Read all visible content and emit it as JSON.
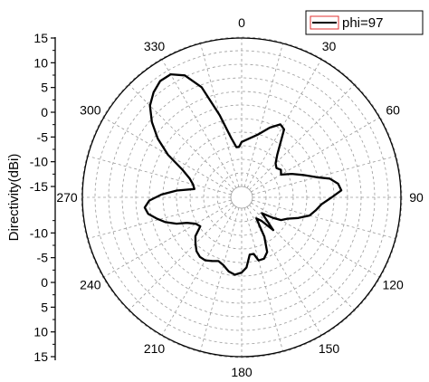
{
  "chart_data": {
    "type": "polar-line",
    "title": "",
    "ylabel": "Directivity(dBi)",
    "radial_range": [
      -15,
      15
    ],
    "radial_ticks_upper": [
      "15",
      "10",
      "5",
      "0",
      "-5",
      "-10",
      "-15"
    ],
    "radial_ticks_lower": [
      "-15",
      "-10",
      "-5",
      "0",
      "5",
      "10",
      "15"
    ],
    "angle_labels": [
      "0",
      "30",
      "60",
      "90",
      "120",
      "150",
      "180",
      "210",
      "240",
      "270",
      "300",
      "330"
    ],
    "angle_direction": "clockwise",
    "zero_angle": "top",
    "grid": true,
    "legend_position": "top-right",
    "series": [
      {
        "name": "phi=97",
        "color": "#000000",
        "theta": [
          0,
          15,
          22,
          28,
          32,
          36,
          40,
          45,
          50,
          55,
          60,
          65,
          70,
          75,
          78,
          82,
          86,
          90,
          95,
          100,
          105,
          110,
          115,
          120,
          123,
          128,
          132,
          136,
          140,
          145,
          150,
          155,
          160,
          165,
          168,
          172,
          176,
          180,
          185,
          190,
          195,
          200,
          205,
          210,
          215,
          220,
          225,
          230,
          235,
          240,
          245,
          248,
          252,
          256,
          260,
          264,
          268,
          272,
          276,
          280,
          285,
          290,
          295,
          300,
          305,
          310,
          315,
          320,
          325,
          330,
          335,
          340,
          345,
          350,
          354,
          357,
          360
        ],
        "values": [
          -6,
          -4,
          -2,
          -0.5,
          -1,
          -4,
          -6,
          -7.5,
          -8,
          -7.5,
          -8,
          -6,
          -4,
          -1.5,
          1,
          2.5,
          3,
          1,
          -1,
          -2,
          -3,
          -5,
          -7,
          -8,
          -9.5,
          -12,
          -10.5,
          -8,
          -11,
          -12,
          -8,
          -5,
          -4,
          -4,
          -5.5,
          -5.5,
          -3,
          -2,
          -1.5,
          -2,
          -3,
          -3.5,
          -3,
          -2.5,
          -2.5,
          -3,
          -4,
          -5,
          -7,
          -6.5,
          -5,
          -3,
          -1,
          0.5,
          2,
          2.5,
          1.5,
          -1,
          -4,
          -7.5,
          -7,
          -6,
          -4,
          0,
          3.5,
          6.5,
          9,
          10.5,
          11.5,
          11.5,
          10,
          6.5,
          0,
          -5,
          -7,
          -7,
          -6
        ]
      }
    ]
  }
}
